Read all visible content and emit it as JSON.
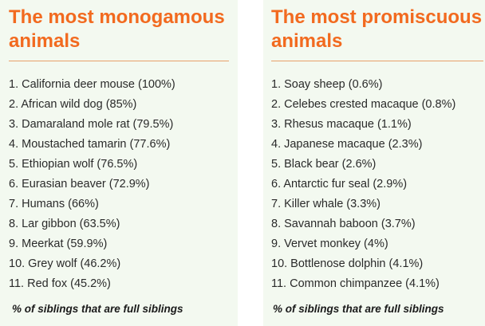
{
  "left_panel": {
    "title": "The most monogamous animals",
    "items": [
      "1. California deer mouse (100%)",
      "2. African wild dog (85%)",
      "3. Damaraland mole rat (79.5%)",
      "4. Moustached tamarin (77.6%)",
      "5. Ethiopian wolf (76.5%)",
      "6. Eurasian beaver (72.9%)",
      "7. Humans (66%)",
      "8. Lar gibbon (63.5%)",
      "9. Meerkat (59.9%)",
      "10. Grey wolf (46.2%)",
      "11. Red fox (45.2%)"
    ],
    "footnote": "% of siblings that are full siblings"
  },
  "right_panel": {
    "title": "The most promiscuous animals",
    "items": [
      "1. Soay sheep (0.6%)",
      "2. Celebes crested macaque (0.8%)",
      "3. Rhesus macaque (1.1%)",
      "4. Japanese macaque (2.3%)",
      "5. Black bear (2.6%)",
      "6. Antarctic fur seal (2.9%)",
      "7. Killer whale (3.3%)",
      "8. Savannah baboon (3.7%)",
      "9. Vervet monkey (4%)",
      "10. Bottlenose dolphin (4.1%)",
      "11. Common chimpanzee (4.1%)"
    ],
    "footnote": "% of siblings that are full siblings"
  },
  "colors": {
    "title": "#f26a1f",
    "panel_background": "#f3f9f0",
    "divider": "#e8a06a",
    "text": "#2a2a2a"
  }
}
